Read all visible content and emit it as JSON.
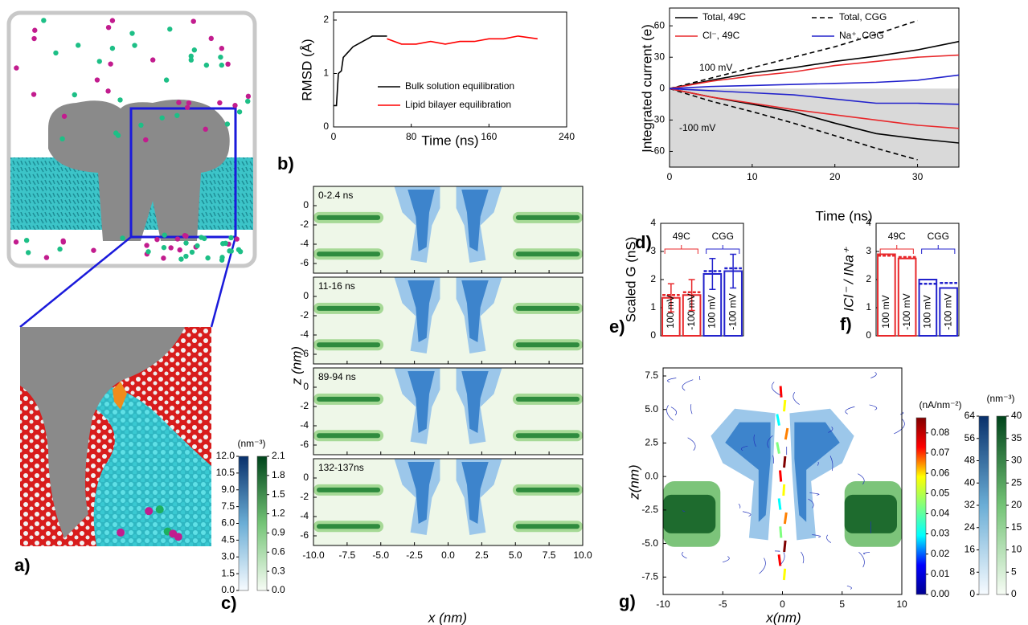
{
  "panel_labels": [
    "a)",
    "b)",
    "c)",
    "d)",
    "e)",
    "f)",
    "g)"
  ],
  "chart_data": [
    {
      "type": "line",
      "x_label": "Time (ns)",
      "y_label": "RMSD (Å)",
      "xlim": [
        0,
        240
      ],
      "ylim": [
        0,
        2.15
      ],
      "xticks": [
        0,
        80,
        160,
        240
      ],
      "yticks": [
        0,
        1,
        2
      ],
      "series": [
        {
          "name": "Bulk solution equilibration",
          "color": "#000000",
          "x": [
            0,
            3,
            5,
            8,
            10,
            15,
            20,
            25,
            30,
            35,
            40,
            45,
            50,
            55
          ],
          "values": [
            0.4,
            0.4,
            1.0,
            1.05,
            1.3,
            1.4,
            1.5,
            1.55,
            1.6,
            1.65,
            1.7,
            1.7,
            1.7,
            1.7
          ]
        },
        {
          "name": "Lipid bilayer equilibration",
          "color": "#ff0000",
          "x": [
            55,
            70,
            85,
            100,
            115,
            130,
            145,
            160,
            175,
            190,
            210
          ],
          "values": [
            1.65,
            1.55,
            1.55,
            1.6,
            1.55,
            1.6,
            1.6,
            1.65,
            1.65,
            1.7,
            1.65
          ]
        }
      ]
    },
    {
      "type": "contour",
      "x_label": "x (nm)",
      "y_label": "z (nm)",
      "xlim": [
        -10,
        10
      ],
      "ylim": [
        -7,
        2
      ],
      "xticks": [
        {
          "value": -10,
          "label": "-10.0"
        },
        -7.5,
        {
          "value": -5,
          "label": "-5.0"
        },
        -2.5,
        {
          "value": 0,
          "label": "0.0"
        },
        2.5,
        {
          "value": 5,
          "label": "5.0"
        },
        7.5,
        {
          "value": 10,
          "label": "10.0"
        }
      ],
      "yticks": [
        0,
        -2,
        -4,
        -6
      ],
      "panels": [
        "0-2.4 ns",
        "11-16 ns",
        "89-94 ns",
        "132-137ns"
      ],
      "colorbars": [
        {
          "label": "(nm⁻³)",
          "lim": [
            0,
            12
          ],
          "colors": [
            "#f7fbff",
            "#6baed6",
            "#08306b"
          ],
          "ticks": [
            {
              "value": 0,
              "label": "0.0"
            },
            1.5,
            {
              "value": 3,
              "label": "3.0"
            },
            4.5,
            {
              "value": 6,
              "label": "6.0"
            },
            7.5,
            {
              "value": 9,
              "label": "9.0"
            },
            10.5,
            {
              "value": 12,
              "label": "12.0"
            }
          ]
        },
        {
          "lim": [
            0,
            2.1
          ],
          "colors": [
            "#f7fcf5",
            "#74c476",
            "#00441b"
          ],
          "ticks": [
            {
              "value": 0,
              "label": "0.0"
            },
            0.3,
            0.6,
            0.9,
            1.2,
            1.5,
            1.8,
            2.1
          ]
        }
      ]
    },
    {
      "type": "line",
      "x_label": "Time (ns)",
      "y_label": "Integrated current (e)",
      "xlim": [
        0,
        35
      ],
      "ylim": [
        -75,
        77
      ],
      "xticks": [
        0,
        10,
        20,
        30
      ],
      "yticks": [
        60,
        30,
        0,
        -30,
        -60
      ],
      "shade_below_zero": true,
      "shade_color": "#d9d9d9",
      "annotations": [
        "100 mV",
        "-100 mV"
      ],
      "x": [
        0,
        5,
        10,
        15,
        20,
        25,
        30,
        35
      ],
      "series": [
        {
          "name": "Total, 49C",
          "color": "#000000",
          "dash": false,
          "values": [
            0,
            8,
            15,
            20,
            26,
            31,
            37,
            45
          ],
          "values_neg": [
            0,
            -8,
            -15,
            -22,
            -33,
            -43,
            -48,
            -52
          ]
        },
        {
          "name": "Total, CGG",
          "color": "#000000",
          "dash": true,
          "values": [
            0,
            10,
            20,
            30,
            40,
            52,
            65,
            null
          ],
          "values_neg": [
            0,
            -12,
            -22,
            -33,
            -45,
            -57,
            -68,
            null
          ]
        },
        {
          "name": "Cl⁻, 49C",
          "color": "#e8282b",
          "dash": false,
          "values": [
            0,
            7,
            12,
            16,
            22,
            26,
            30,
            32
          ],
          "values_neg": [
            0,
            -8,
            -14,
            -20,
            -25,
            -30,
            -35,
            -38
          ]
        },
        {
          "name": "Na⁺, CGG",
          "color": "#2222cc",
          "dash": false,
          "values": [
            0,
            2,
            3,
            4,
            5,
            6,
            8,
            13
          ],
          "values_neg": [
            0,
            -2,
            -4,
            -6,
            -10,
            -14,
            -14,
            -15
          ]
        }
      ]
    },
    {
      "type": "bar",
      "y_label": "Scaled G (nS)",
      "ylim": [
        0,
        4
      ],
      "yticks": [
        0,
        1,
        2,
        3,
        4
      ],
      "categories": [
        "100 mV",
        "-100 mV",
        "100 mV",
        "-100 mV"
      ],
      "values": [
        1.35,
        1.45,
        2.2,
        2.3
      ],
      "dashed_values": [
        1.45,
        1.55,
        2.3,
        2.4
      ],
      "errors": [
        0.5,
        0.55,
        0.55,
        0.6
      ],
      "colors": [
        "#e8282b",
        "#e8282b",
        "#2222cc",
        "#2222cc"
      ],
      "groups": [
        "49C",
        "CGG"
      ]
    },
    {
      "type": "bar",
      "y_label": "ICl⁻ / INa⁺",
      "ylim": [
        0,
        4
      ],
      "yticks": [
        0,
        1,
        2,
        3,
        4
      ],
      "categories": [
        "100 mV",
        "-100 mV",
        "100 mV",
        "-100 mV"
      ],
      "values": [
        2.9,
        2.75,
        2.0,
        1.7
      ],
      "dashed_values": [
        2.85,
        2.8,
        1.85,
        1.88
      ],
      "colors": [
        "#e8282b",
        "#e8282b",
        "#2222cc",
        "#2222cc"
      ],
      "groups": [
        "49C",
        "CGG"
      ]
    },
    {
      "type": "contour",
      "x_label": "x(nm)",
      "y_label": "z(nm)",
      "xlim": [
        -10,
        10
      ],
      "ylim": [
        -8.8,
        8.1
      ],
      "xticks": [
        -10,
        -5,
        0,
        5,
        10
      ],
      "yticks": [
        7.5,
        {
          "value": 5,
          "label": "5.0"
        },
        2.5,
        {
          "value": 0,
          "label": "0.0"
        },
        -2.5,
        {
          "value": -5,
          "label": "-5.0"
        },
        -7.5
      ],
      "colorbars": [
        {
          "label": "(nA/nm⁻²)",
          "lim": [
            0,
            0.0875
          ],
          "colors": [
            "#00008f",
            "#0000ff",
            "#00ffff",
            "#7fff7f",
            "#ffff00",
            "#ff0000",
            "#800000"
          ],
          "ticks": [
            {
              "value": 0,
              "label": "0.00"
            },
            0.01,
            0.02,
            0.03,
            0.04,
            0.05,
            0.06,
            0.07,
            0.08
          ]
        },
        {
          "label": "(nm⁻³)",
          "lim": [
            0,
            64
          ],
          "colors": [
            "#f7fbff",
            "#6baed6",
            "#08306b"
          ],
          "ticks": [
            0,
            8,
            16,
            24,
            32,
            40,
            48,
            56,
            64
          ]
        },
        {
          "lim": [
            0,
            40
          ],
          "colors": [
            "#f7fcf5",
            "#74c476",
            "#00441b"
          ],
          "ticks": [
            0,
            5,
            10,
            15,
            20,
            25,
            30,
            35,
            40
          ]
        }
      ]
    }
  ]
}
